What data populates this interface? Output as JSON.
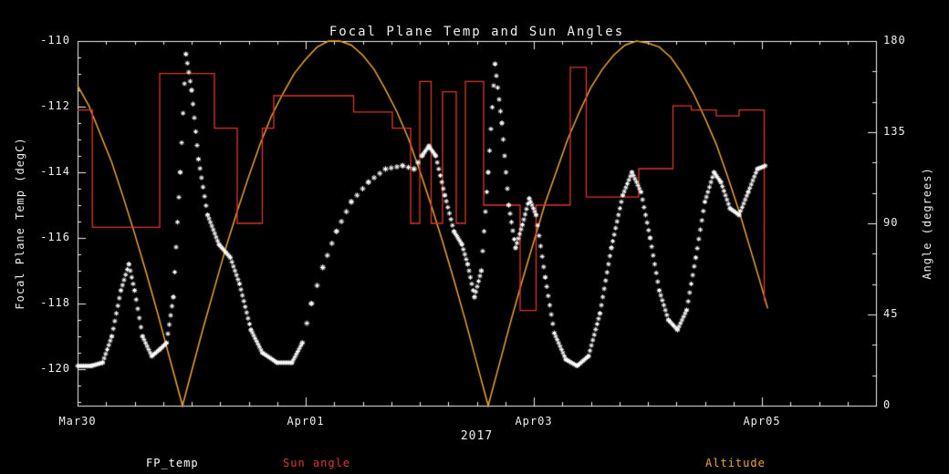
{
  "chart_data": {
    "type": "line",
    "title": "Focal Plane Temp and Sun Angles",
    "colors": {
      "background": "#000000",
      "axis": "#f2f2f2",
      "fp_temp": "#ffffff",
      "sun_angle": "#e2352a",
      "altitude": "#eca62f"
    },
    "x_axis": {
      "label": "2017",
      "min": 0,
      "max": 7,
      "tick_labels": [
        "Mar30",
        "Apr01",
        "Apr03",
        "Apr05"
      ],
      "tick_positions": [
        0,
        2,
        4,
        6
      ],
      "minor_step": 0.25,
      "units": "days since Mar30 2017"
    },
    "left_axis": {
      "label": "Focal Plane Temp (degC)",
      "min": -121.11,
      "max": -110,
      "ticks": [
        -110,
        -112,
        -114,
        -116,
        -118,
        -120
      ],
      "minor_step": 0.5
    },
    "right_axis": {
      "label": "Angle (degrees)",
      "min": 0,
      "max": 180,
      "ticks": [
        0,
        45,
        90,
        135,
        180
      ],
      "minor_step": 15
    },
    "legend": [
      {
        "label": "FP_temp",
        "color": "#ffffff"
      },
      {
        "label": "Sun angle",
        "color": "#e2352a"
      },
      {
        "label": "Altitude",
        "color": "#eca62f"
      }
    ],
    "series": [
      {
        "name": "FP_temp",
        "axis": "left",
        "style": "asterisk-markers",
        "color_key": "fp_temp",
        "sparse_range": [
          1.95,
          3.05
        ],
        "points": [
          [
            0.0,
            -119.9
          ],
          [
            0.12,
            -119.9
          ],
          [
            0.22,
            -119.8
          ],
          [
            0.3,
            -119.0
          ],
          [
            0.38,
            -117.6
          ],
          [
            0.45,
            -116.8
          ],
          [
            0.5,
            -117.6
          ],
          [
            0.57,
            -119.0
          ],
          [
            0.65,
            -119.6
          ],
          [
            0.72,
            -119.4
          ],
          [
            0.78,
            -119.2
          ],
          [
            0.84,
            -117.8
          ],
          [
            0.9,
            -114.0
          ],
          [
            0.95,
            -110.4
          ],
          [
            1.0,
            -111.5
          ],
          [
            1.06,
            -113.6
          ],
          [
            1.14,
            -115.3
          ],
          [
            1.24,
            -116.2
          ],
          [
            1.34,
            -116.6
          ],
          [
            1.42,
            -117.4
          ],
          [
            1.52,
            -118.8
          ],
          [
            1.62,
            -119.5
          ],
          [
            1.75,
            -119.8
          ],
          [
            1.88,
            -119.8
          ],
          [
            1.97,
            -119.2
          ],
          [
            2.05,
            -118.0
          ],
          [
            2.15,
            -116.9
          ],
          [
            2.27,
            -115.8
          ],
          [
            2.4,
            -114.9
          ],
          [
            2.55,
            -114.3
          ],
          [
            2.7,
            -113.9
          ],
          [
            2.85,
            -113.8
          ],
          [
            2.95,
            -113.9
          ],
          [
            3.02,
            -113.5
          ],
          [
            3.08,
            -113.2
          ],
          [
            3.14,
            -113.5
          ],
          [
            3.22,
            -114.7
          ],
          [
            3.3,
            -115.8
          ],
          [
            3.37,
            -116.2
          ],
          [
            3.42,
            -116.8
          ],
          [
            3.48,
            -117.8
          ],
          [
            3.54,
            -117.0
          ],
          [
            3.6,
            -114.0
          ],
          [
            3.66,
            -110.7
          ],
          [
            3.72,
            -112.5
          ],
          [
            3.78,
            -115.0
          ],
          [
            3.84,
            -116.3
          ],
          [
            3.9,
            -115.6
          ],
          [
            3.96,
            -114.8
          ],
          [
            4.02,
            -115.3
          ],
          [
            4.1,
            -117.2
          ],
          [
            4.18,
            -118.9
          ],
          [
            4.28,
            -119.7
          ],
          [
            4.38,
            -119.9
          ],
          [
            4.48,
            -119.6
          ],
          [
            4.58,
            -118.3
          ],
          [
            4.68,
            -116.3
          ],
          [
            4.78,
            -114.7
          ],
          [
            4.86,
            -114.0
          ],
          [
            4.94,
            -114.6
          ],
          [
            5.02,
            -116.0
          ],
          [
            5.1,
            -117.6
          ],
          [
            5.18,
            -118.5
          ],
          [
            5.26,
            -118.8
          ],
          [
            5.34,
            -118.2
          ],
          [
            5.42,
            -116.6
          ],
          [
            5.5,
            -114.9
          ],
          [
            5.58,
            -114.0
          ],
          [
            5.64,
            -114.3
          ],
          [
            5.72,
            -115.1
          ],
          [
            5.8,
            -115.3
          ],
          [
            5.88,
            -114.6
          ],
          [
            5.96,
            -113.9
          ],
          [
            6.03,
            -113.8
          ]
        ]
      },
      {
        "name": "Sun angle",
        "axis": "right",
        "style": "step",
        "color_key": "sun_angle",
        "points": [
          [
            0.0,
            146
          ],
          [
            0.13,
            88
          ],
          [
            0.72,
            164
          ],
          [
            1.2,
            137
          ],
          [
            1.4,
            90
          ],
          [
            1.62,
            137
          ],
          [
            1.72,
            153
          ],
          [
            2.42,
            145
          ],
          [
            2.76,
            137
          ],
          [
            2.92,
            90
          ],
          [
            3.0,
            160
          ],
          [
            3.1,
            90
          ],
          [
            3.2,
            155
          ],
          [
            3.32,
            90
          ],
          [
            3.4,
            160
          ],
          [
            3.56,
            99
          ],
          [
            3.88,
            47
          ],
          [
            4.02,
            99
          ],
          [
            4.32,
            167
          ],
          [
            4.46,
            103
          ],
          [
            4.92,
            117
          ],
          [
            5.22,
            148
          ],
          [
            5.38,
            146
          ],
          [
            5.6,
            143
          ],
          [
            5.8,
            146
          ],
          [
            6.02,
            52
          ],
          [
            6.04,
            52
          ]
        ]
      },
      {
        "name": "Altitude",
        "axis": "right",
        "style": "line",
        "color_key": "altitude",
        "points": [
          [
            0.0,
            158
          ],
          [
            0.1,
            148
          ],
          [
            0.2,
            134
          ],
          [
            0.3,
            120
          ],
          [
            0.4,
            103
          ],
          [
            0.5,
            85
          ],
          [
            0.6,
            66
          ],
          [
            0.7,
            46
          ],
          [
            0.8,
            25
          ],
          [
            0.92,
            0
          ],
          [
            1.0,
            17
          ],
          [
            1.1,
            38
          ],
          [
            1.2,
            58
          ],
          [
            1.3,
            78
          ],
          [
            1.4,
            96
          ],
          [
            1.5,
            113
          ],
          [
            1.6,
            129
          ],
          [
            1.7,
            143
          ],
          [
            1.8,
            154
          ],
          [
            1.9,
            164
          ],
          [
            2.0,
            171
          ],
          [
            2.1,
            177
          ],
          [
            2.2,
            180
          ],
          [
            2.3,
            180
          ],
          [
            2.4,
            178
          ],
          [
            2.5,
            173
          ],
          [
            2.6,
            166
          ],
          [
            2.7,
            156
          ],
          [
            2.8,
            145
          ],
          [
            2.9,
            132
          ],
          [
            3.0,
            116
          ],
          [
            3.1,
            99
          ],
          [
            3.2,
            81
          ],
          [
            3.3,
            62
          ],
          [
            3.4,
            42
          ],
          [
            3.5,
            21
          ],
          [
            3.6,
            0
          ],
          [
            3.7,
            21
          ],
          [
            3.8,
            42
          ],
          [
            3.9,
            62
          ],
          [
            4.0,
            81
          ],
          [
            4.1,
            100
          ],
          [
            4.2,
            116
          ],
          [
            4.3,
            132
          ],
          [
            4.4,
            145
          ],
          [
            4.5,
            157
          ],
          [
            4.6,
            166
          ],
          [
            4.7,
            173
          ],
          [
            4.8,
            178
          ],
          [
            4.9,
            180
          ],
          [
            5.0,
            179
          ],
          [
            5.1,
            177
          ],
          [
            5.2,
            172
          ],
          [
            5.3,
            164
          ],
          [
            5.4,
            154
          ],
          [
            5.5,
            142
          ],
          [
            5.6,
            129
          ],
          [
            5.7,
            113
          ],
          [
            5.8,
            96
          ],
          [
            5.9,
            77
          ],
          [
            6.0,
            58
          ],
          [
            6.05,
            48
          ]
        ]
      }
    ]
  }
}
